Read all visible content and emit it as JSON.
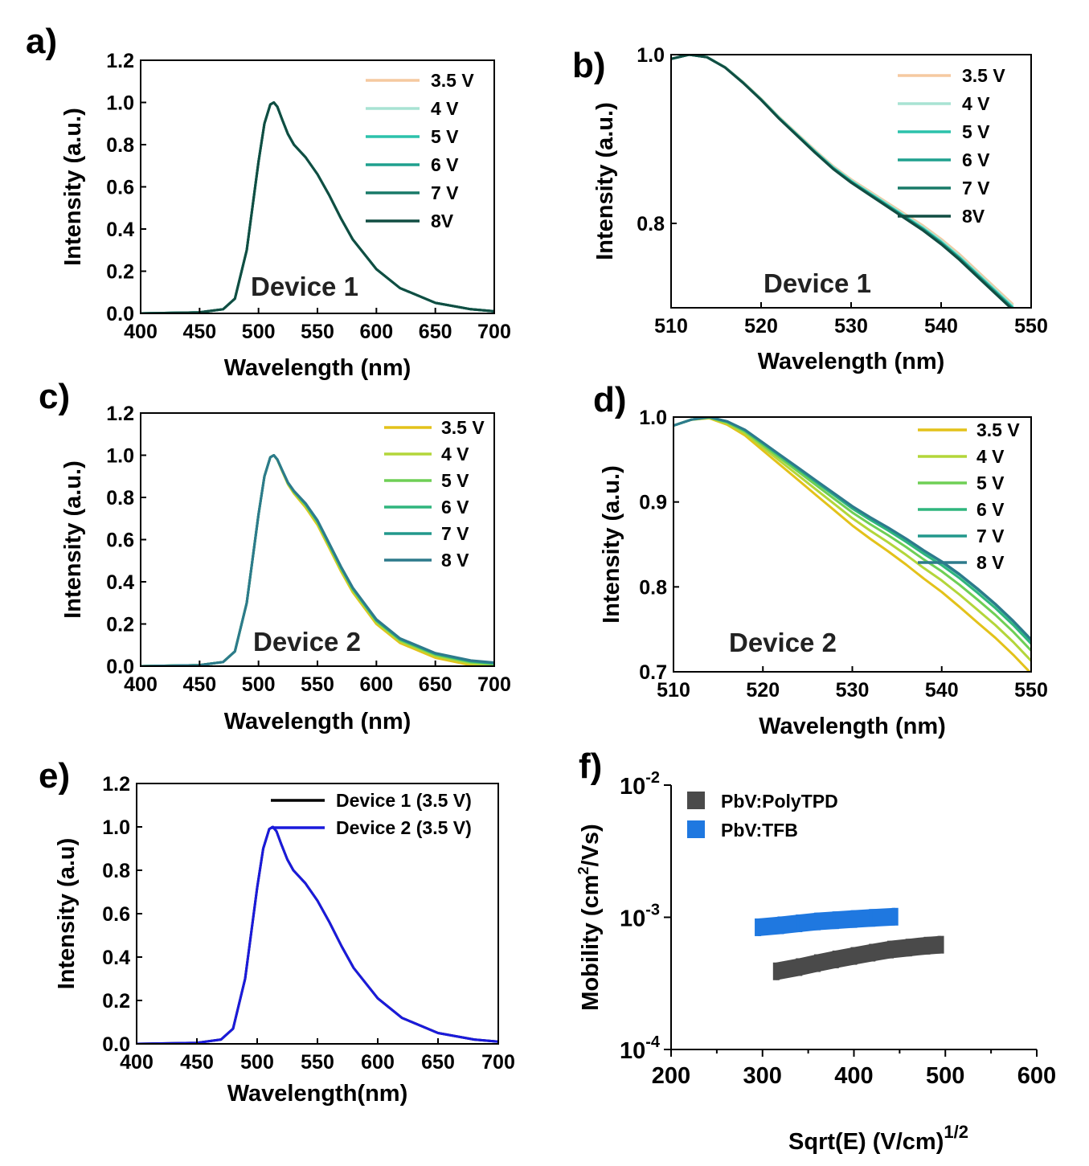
{
  "chart_data": [
    {
      "id": "a",
      "panel_label": "a)",
      "type": "line",
      "xlabel": "Wavelength (nm)",
      "ylabel": "Intensity (a.u.)",
      "xlim": [
        400,
        700
      ],
      "ylim": [
        0.0,
        1.2
      ],
      "x_ticks": [
        "400",
        "450",
        "500",
        "550",
        "600",
        "650",
        "700"
      ],
      "y_ticks": [
        "0.0",
        "0.2",
        "0.4",
        "0.6",
        "0.8",
        "1.0",
        "1.2"
      ],
      "annotation": "Device 1",
      "legend_position": "top-right",
      "series": [
        {
          "name": "3.5 V",
          "color": "#f5c9a0"
        },
        {
          "name": "4 V",
          "color": "#a8e3d3"
        },
        {
          "name": "5 V",
          "color": "#2cc2ab"
        },
        {
          "name": "6 V",
          "color": "#1fa08e"
        },
        {
          "name": "7 V",
          "color": "#187a68"
        },
        {
          "name": "8V",
          "color": "#114d42"
        }
      ],
      "x": [
        400,
        450,
        470,
        480,
        490,
        500,
        505,
        510,
        513,
        516,
        520,
        525,
        530,
        540,
        550,
        560,
        570,
        580,
        600,
        620,
        650,
        680,
        700
      ],
      "y": [
        0.0,
        0.005,
        0.02,
        0.07,
        0.3,
        0.72,
        0.9,
        0.99,
        1.0,
        0.98,
        0.92,
        0.85,
        0.8,
        0.74,
        0.66,
        0.56,
        0.45,
        0.35,
        0.21,
        0.12,
        0.05,
        0.02,
        0.01
      ]
    },
    {
      "id": "b",
      "panel_label": "b)",
      "type": "line",
      "xlabel": "Wavelength (nm)",
      "ylabel": "Intensity (a.u.)",
      "xlim": [
        510,
        550
      ],
      "ylim": [
        0.7,
        1.0
      ],
      "x_ticks": [
        "510",
        "520",
        "530",
        "540",
        "550"
      ],
      "y_ticks": [
        "0.8",
        "1.0"
      ],
      "y_tick_values": [
        0.8,
        1.0
      ],
      "annotation": "Device 1",
      "legend_position": "top-right",
      "series": [
        {
          "name": "3.5 V",
          "color": "#f5c9a0",
          "offset": 0.004
        },
        {
          "name": "4 V",
          "color": "#a8e3d3",
          "offset": 0.002
        },
        {
          "name": "5 V",
          "color": "#2cc2ab",
          "offset": 0.0
        },
        {
          "name": "6 V",
          "color": "#1fa08e",
          "offset": -0.001
        },
        {
          "name": "7 V",
          "color": "#187a68",
          "offset": -0.002
        },
        {
          "name": "8V",
          "color": "#114d42",
          "offset": -0.003
        }
      ],
      "x": [
        510,
        512,
        514,
        516,
        518,
        520,
        522,
        524,
        526,
        528,
        530,
        532,
        534,
        536,
        538,
        540,
        542,
        544,
        546,
        548
      ],
      "y": [
        0.995,
        1.0,
        0.997,
        0.985,
        0.967,
        0.947,
        0.925,
        0.905,
        0.885,
        0.866,
        0.85,
        0.836,
        0.822,
        0.808,
        0.794,
        0.778,
        0.76,
        0.74,
        0.72,
        0.7
      ]
    },
    {
      "id": "c",
      "panel_label": "c)",
      "type": "line",
      "xlabel": "Wavelength (nm)",
      "ylabel": "Intensity (a.u.)",
      "xlim": [
        400,
        700
      ],
      "ylim": [
        0.0,
        1.2
      ],
      "x_ticks": [
        "400",
        "450",
        "500",
        "550",
        "600",
        "650",
        "700"
      ],
      "y_ticks": [
        "0.0",
        "0.2",
        "0.4",
        "0.6",
        "0.8",
        "1.0",
        "1.2"
      ],
      "annotation": "Device 2",
      "legend_position": "top-right",
      "series": [
        {
          "name": "3.5 V",
          "color": "#e3c21a",
          "offset": -0.02
        },
        {
          "name": "4 V",
          "color": "#b3d63a",
          "offset": -0.012
        },
        {
          "name": "5 V",
          "color": "#6fcf55",
          "offset": -0.006
        },
        {
          "name": "6 V",
          "color": "#2fb57d",
          "offset": -0.002
        },
        {
          "name": "7 V",
          "color": "#22988c",
          "offset": 0.0
        },
        {
          "name": "8 V",
          "color": "#2d7a8c",
          "offset": 0.002
        }
      ],
      "x": [
        400,
        450,
        470,
        480,
        490,
        500,
        505,
        510,
        513,
        516,
        520,
        525,
        530,
        540,
        550,
        560,
        570,
        580,
        600,
        620,
        650,
        680,
        700
      ],
      "y": [
        0.0,
        0.005,
        0.02,
        0.07,
        0.3,
        0.72,
        0.9,
        0.99,
        1.0,
        0.98,
        0.93,
        0.87,
        0.83,
        0.77,
        0.69,
        0.58,
        0.47,
        0.37,
        0.22,
        0.13,
        0.06,
        0.025,
        0.015
      ]
    },
    {
      "id": "d",
      "panel_label": "d)",
      "type": "line",
      "xlabel": "Wavelength (nm)",
      "ylabel": "Intensity (a.u.)",
      "xlim": [
        510,
        550
      ],
      "ylim": [
        0.7,
        1.0
      ],
      "x_ticks": [
        "510",
        "520",
        "530",
        "540",
        "550"
      ],
      "y_ticks": [
        "0.7",
        "0.8",
        "0.9",
        "1.0"
      ],
      "y_tick_values": [
        0.7,
        0.8,
        0.9,
        1.0
      ],
      "annotation": "Device 2",
      "legend_position": "top-right",
      "series": [
        {
          "name": "3.5 V",
          "color": "#e3c21a",
          "offset": -0.04
        },
        {
          "name": "4 V",
          "color": "#b3d63a",
          "offset": -0.025
        },
        {
          "name": "5 V",
          "color": "#6fcf55",
          "offset": -0.013
        },
        {
          "name": "6 V",
          "color": "#2fb57d",
          "offset": -0.005
        },
        {
          "name": "7 V",
          "color": "#22988c",
          "offset": -0.001
        },
        {
          "name": "8 V",
          "color": "#2d7a8c",
          "offset": 0.0
        }
      ],
      "x": [
        510,
        512,
        514,
        516,
        518,
        520,
        522,
        524,
        526,
        528,
        530,
        532,
        534,
        536,
        538,
        540,
        542,
        544,
        546,
        548,
        550
      ],
      "y": [
        0.99,
        0.997,
        1.0,
        0.995,
        0.985,
        0.97,
        0.955,
        0.94,
        0.925,
        0.91,
        0.895,
        0.882,
        0.87,
        0.857,
        0.843,
        0.83,
        0.815,
        0.798,
        0.78,
        0.76,
        0.738
      ]
    },
    {
      "id": "e",
      "panel_label": "e)",
      "type": "line",
      "xlabel": "Wavelength(nm)",
      "ylabel": "Intensity (a.u)",
      "xlim": [
        400,
        700
      ],
      "ylim": [
        0.0,
        1.2
      ],
      "x_ticks": [
        "400",
        "450",
        "500",
        "550",
        "600",
        "650",
        "700"
      ],
      "y_ticks": [
        "0.0",
        "0.2",
        "0.4",
        "0.6",
        "0.8",
        "1.0",
        "1.2"
      ],
      "legend_position": "top-right",
      "series": [
        {
          "name": "Device 1 (3.5 V)",
          "color": "#000000"
        },
        {
          "name": "Device 2 (3.5 V)",
          "color": "#1a1adc"
        }
      ],
      "x": [
        400,
        450,
        470,
        480,
        490,
        500,
        505,
        510,
        513,
        516,
        520,
        525,
        530,
        540,
        550,
        560,
        570,
        580,
        600,
        620,
        650,
        680,
        700
      ],
      "y": [
        0.0,
        0.005,
        0.02,
        0.07,
        0.3,
        0.72,
        0.9,
        0.99,
        1.0,
        0.98,
        0.92,
        0.85,
        0.8,
        0.74,
        0.66,
        0.56,
        0.45,
        0.35,
        0.21,
        0.12,
        0.05,
        0.02,
        0.01
      ]
    },
    {
      "id": "f",
      "panel_label": "f)",
      "type": "scatter",
      "xlabel": "Sqrt(E) (V/cm)",
      "xlabel_sup": "1/2",
      "ylabel": "Mobility (cm",
      "ylabel_sup": "2",
      "ylabel_tail": "/Vs)",
      "xlim": [
        200,
        600
      ],
      "ylim": [
        0.0001,
        0.01
      ],
      "log_y": true,
      "x_ticks": [
        "200",
        "300",
        "400",
        "500",
        "600"
      ],
      "y_ticks": [
        {
          "base": "10",
          "exp": "-4",
          "value": 0.0001
        },
        {
          "base": "10",
          "exp": "-3",
          "value": 0.001
        },
        {
          "base": "10",
          "exp": "-2",
          "value": 0.01
        }
      ],
      "legend_position": "top-left",
      "series": [
        {
          "name": "PbV:PolyTPD",
          "color": "#4a4a4a",
          "x": [
            315,
            340,
            360,
            380,
            400,
            420,
            440,
            460,
            480,
            495
          ],
          "y": [
            0.00039,
            0.00042,
            0.00045,
            0.00048,
            0.00051,
            0.00054,
            0.00057,
            0.00059,
            0.00061,
            0.00062
          ]
        },
        {
          "name": "PbV:TFB",
          "color": "#1f78e0",
          "x": [
            295,
            320,
            340,
            360,
            380,
            400,
            420,
            445
          ],
          "y": [
            0.00084,
            0.00087,
            0.0009,
            0.00093,
            0.00095,
            0.00097,
            0.00099,
            0.00101
          ]
        }
      ]
    }
  ]
}
